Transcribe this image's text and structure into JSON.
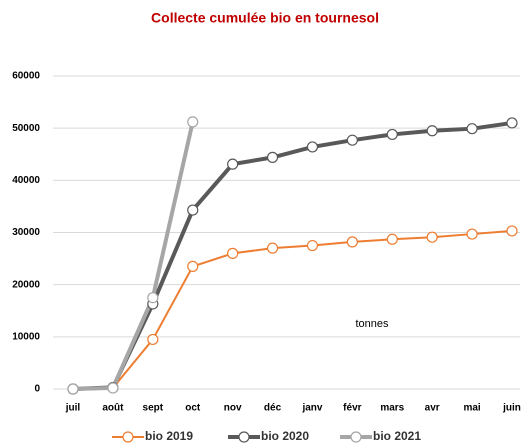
{
  "chart_data": {
    "type": "line",
    "title": "Collecte  cumulée bio  en tournesol",
    "annotation": "tonnes",
    "categories": [
      "juil",
      "août",
      "sept",
      "oct",
      "nov",
      "déc",
      "janv",
      "févr",
      "mars",
      "avr",
      "mai",
      "juin"
    ],
    "series": [
      {
        "name": "bio 2019",
        "color": "#ed7d31",
        "values": [
          0,
          200,
          9500,
          23500,
          26000,
          27000,
          27500,
          28200,
          28700,
          29100,
          29700,
          30300
        ]
      },
      {
        "name": "bio 2020",
        "color": "#595959",
        "values": [
          0,
          300,
          16300,
          34300,
          43100,
          44400,
          46400,
          47700,
          48800,
          49500,
          49900,
          51000
        ]
      },
      {
        "name": "bio 2021",
        "color": "#a6a6a6",
        "values": [
          0,
          200,
          17500,
          51200,
          null,
          null,
          null,
          null,
          null,
          null,
          null,
          null
        ]
      }
    ],
    "ylim": [
      0,
      60000
    ],
    "yticks": [
      0,
      10000,
      20000,
      30000,
      40000,
      50000,
      60000
    ],
    "grid": true,
    "legend": "bottom"
  }
}
